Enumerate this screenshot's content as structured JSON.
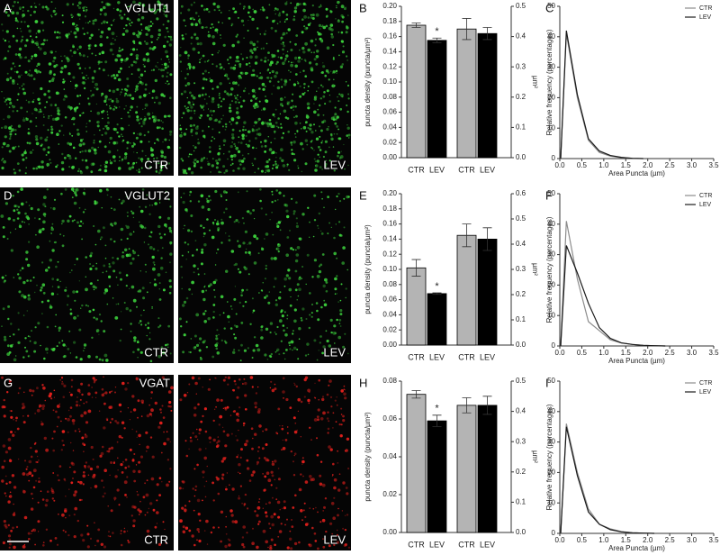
{
  "panels": [
    {
      "letter": "A",
      "marker": "VGLUT1",
      "conditions": [
        "CTR",
        "LEV"
      ]
    },
    {
      "letter": "D",
      "marker": "VGLUT2",
      "conditions": [
        "CTR",
        "LEV"
      ]
    },
    {
      "letter": "G",
      "marker": "VGAT",
      "conditions": [
        "CTR",
        "LEV"
      ]
    }
  ],
  "chart_data": [
    {
      "type": "bar",
      "label": "B",
      "ylabel": "puncta density (puncta/µm²)",
      "y2label": "µm²",
      "annotation": "*",
      "ylim": [
        0,
        0.2
      ],
      "yticks": [
        {
          "value": 0,
          "label": "0.00"
        },
        0.02,
        0.04,
        0.06,
        0.08,
        {
          "value": 0.1,
          "label": "0.10"
        },
        0.12,
        0.14,
        0.16,
        0.18,
        {
          "value": 0.2,
          "label": "0.20"
        }
      ],
      "y2lim": [
        0,
        0.5
      ],
      "y2ticks": [
        {
          "value": 0,
          "label": "0.0"
        },
        0.1,
        0.2,
        0.3,
        0.4,
        0.5
      ],
      "groups": [
        {
          "categories": [
            "CTR",
            "LEV"
          ],
          "values": [
            0.175,
            0.155
          ],
          "errors": [
            0.003,
            0.003
          ],
          "colors": [
            "#b4b4b4",
            "#000000"
          ]
        },
        {
          "axis": "y2",
          "categories": [
            "CTR",
            "LEV"
          ],
          "values": [
            0.425,
            0.41
          ],
          "errors": [
            0.035,
            0.02
          ],
          "colors": [
            "#b4b4b4",
            "#000000"
          ]
        }
      ]
    },
    {
      "type": "line",
      "label": "C",
      "xlabel": "Area Puncta (µm)",
      "ylabel": "Relative frequency (percentages)",
      "legend": "upper right",
      "xlim": [
        0,
        3.5
      ],
      "xticks": [
        {
          "value": 0,
          "label": "0.0"
        },
        0.5,
        {
          "value": 1,
          "label": "1.0"
        },
        1.5,
        {
          "value": 2,
          "label": "2.0"
        },
        2.5,
        {
          "value": 3,
          "label": "3.0"
        },
        3.5
      ],
      "ylim": [
        0,
        50
      ],
      "yticks": [
        0,
        10,
        20,
        30,
        40,
        50
      ],
      "x": [
        0.02,
        0.15,
        0.4,
        0.65,
        0.9,
        1.15,
        1.4,
        1.65,
        1.9
      ],
      "series": [
        {
          "name": "CTR",
          "color": "#8c8c8c",
          "values": [
            0,
            41,
            20,
            6,
            2,
            0.8,
            0.3,
            0.1,
            0
          ]
        },
        {
          "name": "LEV",
          "color": "#1a1a1a",
          "values": [
            0,
            42,
            21,
            6.5,
            2.5,
            1,
            0.4,
            0.1,
            0
          ]
        }
      ]
    },
    {
      "type": "bar",
      "label": "E",
      "ylabel": "puncta density (puncta/µm²)",
      "y2label": "µm²",
      "annotation": "*",
      "ylim": [
        0,
        0.2
      ],
      "yticks": [
        {
          "value": 0,
          "label": "0.00"
        },
        0.02,
        0.04,
        0.06,
        0.08,
        {
          "value": 0.1,
          "label": "0.10"
        },
        0.12,
        0.14,
        0.16,
        0.18,
        {
          "value": 0.2,
          "label": "0.20"
        }
      ],
      "y2lim": [
        0,
        0.6
      ],
      "y2ticks": [
        {
          "value": 0,
          "label": "0.0"
        },
        0.1,
        0.2,
        0.3,
        0.4,
        0.5,
        0.6
      ],
      "groups": [
        {
          "categories": [
            "CTR",
            "LEV"
          ],
          "values": [
            0.102,
            0.068
          ],
          "errors": [
            0.011,
            0.001
          ],
          "colors": [
            "#b4b4b4",
            "#000000"
          ]
        },
        {
          "axis": "y2",
          "categories": [
            "CTR",
            "LEV"
          ],
          "values": [
            0.435,
            0.42
          ],
          "errors": [
            0.045,
            0.045
          ],
          "colors": [
            "#b4b4b4",
            "#000000"
          ]
        }
      ]
    },
    {
      "type": "line",
      "label": "F",
      "xlabel": "Area Puncta (µm)",
      "ylabel": "Relative frequency (percentages)",
      "legend": "upper right",
      "xlim": [
        0,
        3.5
      ],
      "xticks": [
        {
          "value": 0,
          "label": "0.0"
        },
        0.5,
        {
          "value": 1,
          "label": "1.0"
        },
        1.5,
        {
          "value": 2,
          "label": "2.0"
        },
        2.5,
        {
          "value": 3,
          "label": "3.0"
        },
        3.5
      ],
      "ylim": [
        0,
        50
      ],
      "yticks": [
        0,
        10,
        20,
        30,
        40,
        50
      ],
      "x": [
        0.02,
        0.15,
        0.4,
        0.65,
        0.9,
        1.15,
        1.4,
        1.65,
        1.9,
        2.15,
        2.4
      ],
      "series": [
        {
          "name": "CTR",
          "color": "#8c8c8c",
          "values": [
            0,
            41,
            22,
            8,
            5,
            2,
            1,
            0.5,
            0.2,
            0.1,
            0
          ]
        },
        {
          "name": "LEV",
          "color": "#1a1a1a",
          "values": [
            0,
            33,
            24,
            14,
            6,
            2.5,
            1,
            0.5,
            0.2,
            0.1,
            0
          ]
        }
      ]
    },
    {
      "type": "bar",
      "label": "H",
      "ylabel": "puncta density (puncta/µm²)",
      "y2label": "µm²",
      "annotation": "*",
      "ylim": [
        0,
        0.08
      ],
      "yticks": [
        {
          "value": 0,
          "label": "0.00"
        },
        0.02,
        0.04,
        0.06,
        0.08
      ],
      "y2lim": [
        0,
        0.5
      ],
      "y2ticks": [
        {
          "value": 0,
          "label": "0.0"
        },
        0.1,
        0.2,
        0.3,
        0.4,
        0.5
      ],
      "groups": [
        {
          "categories": [
            "CTR",
            "LEV"
          ],
          "values": [
            0.073,
            0.059
          ],
          "errors": [
            0.002,
            0.003
          ],
          "colors": [
            "#b4b4b4",
            "#000000"
          ]
        },
        {
          "axis": "y2",
          "categories": [
            "CTR",
            "LEV"
          ],
          "values": [
            0.42,
            0.42
          ],
          "errors": [
            0.025,
            0.03
          ],
          "colors": [
            "#b4b4b4",
            "#000000"
          ]
        }
      ]
    },
    {
      "type": "line",
      "label": "I",
      "xlabel": "Area Puncta (µm)",
      "ylabel": "Relative frequency (percentages)",
      "legend": "upper right",
      "xlim": [
        0,
        3.5
      ],
      "xticks": [
        {
          "value": 0,
          "label": "0.0"
        },
        0.5,
        {
          "value": 1,
          "label": "1.0"
        },
        1.5,
        {
          "value": 2,
          "label": "2.0"
        },
        2.5,
        {
          "value": 3,
          "label": "3.0"
        },
        3.5
      ],
      "ylim": [
        0,
        50
      ],
      "yticks": [
        0,
        10,
        20,
        30,
        40,
        50
      ],
      "x": [
        0.02,
        0.15,
        0.4,
        0.65,
        0.9,
        1.15,
        1.4,
        1.65,
        1.9,
        2.15
      ],
      "series": [
        {
          "name": "CTR",
          "color": "#8c8c8c",
          "values": [
            0,
            36,
            20,
            8,
            3,
            1.5,
            0.6,
            0.2,
            0.1,
            0
          ]
        },
        {
          "name": "LEV",
          "color": "#1a1a1a",
          "values": [
            0,
            35,
            19,
            7,
            3,
            1.2,
            0.5,
            0.2,
            0.1,
            0
          ]
        }
      ]
    }
  ]
}
